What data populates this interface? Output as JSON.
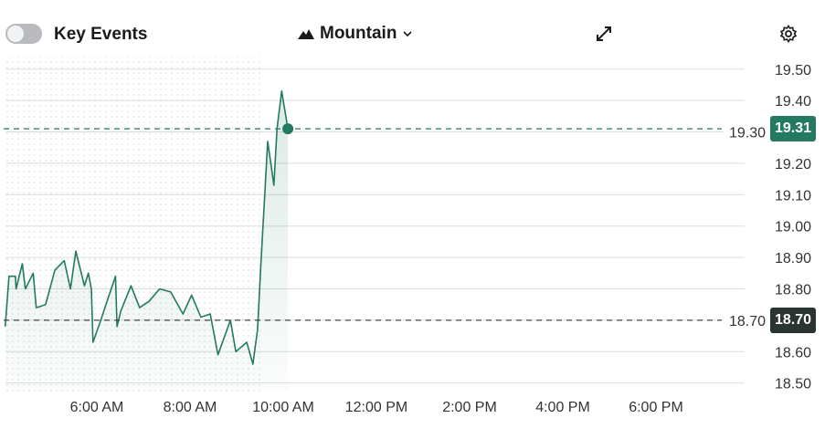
{
  "header": {
    "toggle_label": "Key Events",
    "toggle_on": false,
    "chart_style": "Mountain",
    "chart_style_icon": "mountain-icon",
    "expand_icon": "expand-icon",
    "settings_icon": "gear-icon"
  },
  "colors": {
    "line": "#237a60",
    "last_badge": "#237a60",
    "ref_badge": "#2a3431"
  },
  "badges": {
    "last": "19.31",
    "reference": "18.70"
  },
  "chart_data": {
    "type": "area",
    "x": [
      "04:02",
      "04:07",
      "04:15",
      "04:16",
      "04:24",
      "04:28",
      "04:38",
      "04:42",
      "04:54",
      "05:06",
      "05:18",
      "05:26",
      "05:33",
      "05:44",
      "05:49",
      "05:53",
      "05:55",
      "06:05",
      "06:13",
      "06:24",
      "06:26",
      "06:31",
      "06:44",
      "06:55",
      "07:07",
      "07:21",
      "07:35",
      "07:51",
      "08:02",
      "08:14",
      "08:26",
      "08:36",
      "08:52",
      "08:59",
      "09:13",
      "09:21",
      "09:27",
      "09:31",
      "09:40",
      "09:48",
      "09:52",
      "09:58",
      "10:06"
    ],
    "values": [
      18.68,
      18.84,
      18.84,
      18.8,
      18.88,
      18.8,
      18.85,
      18.74,
      18.75,
      18.86,
      18.89,
      18.8,
      18.92,
      18.81,
      18.85,
      18.8,
      18.63,
      18.7,
      18.76,
      18.84,
      18.68,
      18.73,
      18.81,
      18.74,
      18.76,
      18.8,
      18.79,
      18.72,
      18.78,
      18.71,
      18.72,
      18.59,
      18.7,
      18.6,
      18.63,
      18.56,
      18.67,
      18.87,
      19.27,
      19.13,
      19.31,
      19.43,
      19.31
    ],
    "last_price": 19.31,
    "reference_price": 18.7,
    "xlim": [
      "04:00",
      "20:00"
    ],
    "ylim": [
      18.47,
      19.54
    ],
    "yticks": [
      "19.50",
      "19.40",
      "19.30",
      "19.20",
      "19.10",
      "19.00",
      "18.90",
      "18.80",
      "18.70",
      "18.60",
      "18.50"
    ],
    "xticks": [
      {
        "t": "06:00",
        "label": "6:00 AM"
      },
      {
        "t": "08:00",
        "label": "8:00 AM"
      },
      {
        "t": "10:00",
        "label": "10:00 AM"
      },
      {
        "t": "12:00",
        "label": "12:00 PM"
      },
      {
        "t": "14:00",
        "label": "2:00 PM"
      },
      {
        "t": "16:00",
        "label": "4:00 PM"
      },
      {
        "t": "18:00",
        "label": "6:00 PM"
      }
    ],
    "premarket_shaded": [
      "04:00",
      "09:30"
    ],
    "grid": true
  }
}
